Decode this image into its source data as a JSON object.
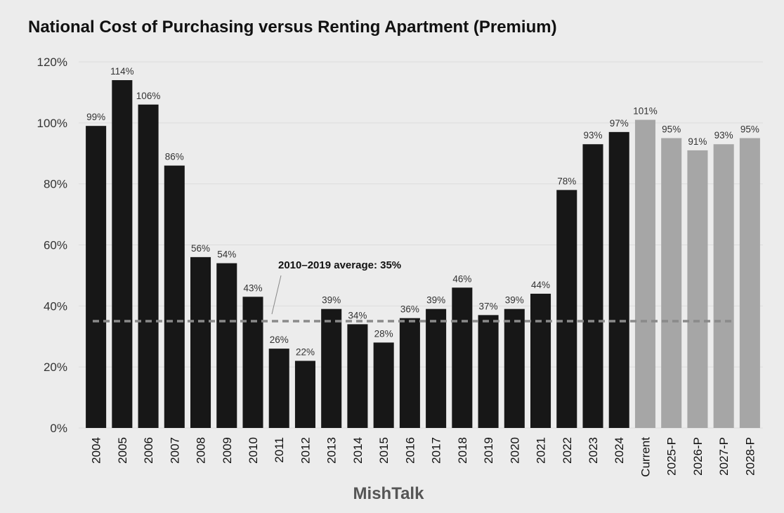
{
  "chart_data": {
    "type": "bar",
    "title": "National Cost of Purchasing versus Renting Apartment (Premium)",
    "xlabel": "",
    "ylabel": "",
    "ylim": [
      0,
      120
    ],
    "yticks": [
      0,
      20,
      40,
      60,
      80,
      100,
      120
    ],
    "ytick_labels": [
      "0%",
      "20%",
      "40%",
      "60%",
      "80%",
      "100%",
      "120%"
    ],
    "grid": true,
    "categories": [
      "2004",
      "2005",
      "2006",
      "2007",
      "2008",
      "2009",
      "2010",
      "2011",
      "2012",
      "2013",
      "2014",
      "2015",
      "2016",
      "2017",
      "2018",
      "2019",
      "2020",
      "2021",
      "2022",
      "2023",
      "2024",
      "Current",
      "2025-P",
      "2026-P",
      "2027-P",
      "2028-P"
    ],
    "values": [
      99,
      114,
      106,
      86,
      56,
      54,
      43,
      26,
      22,
      39,
      34,
      28,
      36,
      39,
      46,
      37,
      39,
      44,
      78,
      93,
      97,
      101,
      95,
      91,
      93,
      95
    ],
    "value_labels": [
      "99%",
      "114%",
      "106%",
      "86%",
      "56%",
      "54%",
      "43%",
      "26%",
      "22%",
      "39%",
      "34%",
      "28%",
      "36%",
      "39%",
      "46%",
      "37%",
      "39%",
      "44%",
      "78%",
      "93%",
      "97%",
      "101%",
      "95%",
      "91%",
      "93%",
      "95%"
    ],
    "colors": {
      "historical": "#171717",
      "projected": "#a6a6a6",
      "average_line": "#8a8a8a",
      "background": "#ececec"
    },
    "projected_from_index": 21,
    "reference_line": {
      "value": 35,
      "label": "2010–2019 average: 35%"
    },
    "watermark": "MishTalk"
  }
}
